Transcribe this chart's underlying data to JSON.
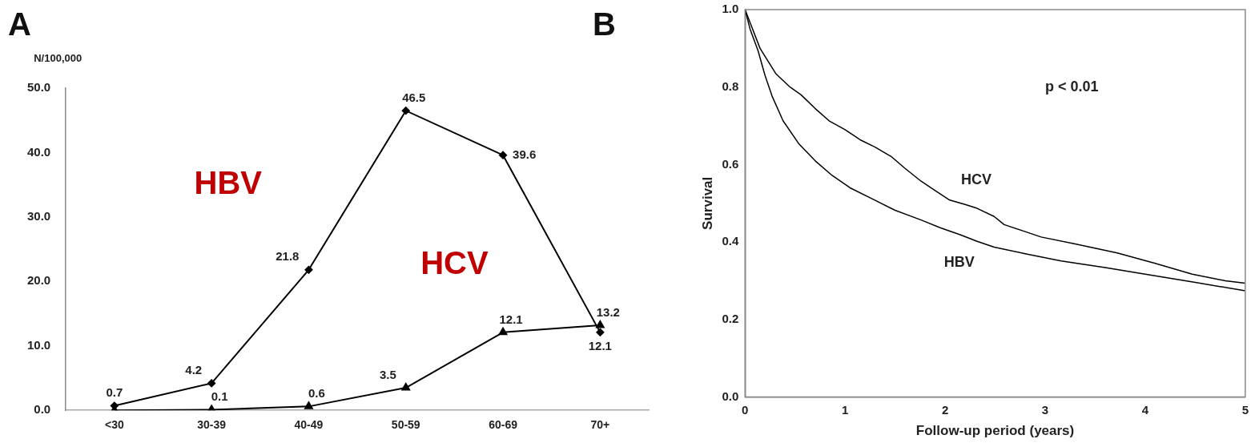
{
  "chart_data": [
    {
      "type": "line",
      "title": "A",
      "ylabel": "N/100,000",
      "categories": [
        "<30",
        "30-39",
        "40-49",
        "50-59",
        "60-69",
        "70+"
      ],
      "series": [
        {
          "name": "HBV",
          "color": "#000000",
          "marker": "diamond",
          "values": [
            0.7,
            4.2,
            21.8,
            46.5,
            39.6,
            12.1
          ],
          "value_labels": [
            "0.7",
            "4.2",
            "21.8",
            "46.5",
            "39.6",
            "12.1"
          ]
        },
        {
          "name": "HCV",
          "color": "#000000",
          "marker": "triangle",
          "values": [
            0.0,
            0.1,
            0.6,
            3.5,
            12.1,
            13.2
          ],
          "value_labels": [
            null,
            "0.1",
            "0.6",
            "3.5",
            "12.1",
            "13.2"
          ]
        }
      ],
      "ylim": [
        0,
        50
      ],
      "yticks": [
        {
          "value": 0,
          "label": "0.0"
        },
        {
          "value": 10,
          "label": "10.0"
        },
        {
          "value": 20,
          "label": "20.0"
        },
        {
          "value": 30,
          "label": "30.0"
        },
        {
          "value": 40,
          "label": "40.0"
        },
        {
          "value": 50,
          "label": "50.0"
        }
      ],
      "grid": false,
      "legend": false
    },
    {
      "type": "line",
      "title": "B",
      "xlabel": "Follow-up period (years)",
      "ylabel": "Survival",
      "annotations": [
        "p < 0.01"
      ],
      "series": [
        {
          "name": "HCV",
          "color": "#000000",
          "x": [
            0,
            0.06,
            0.15,
            0.31,
            0.45,
            0.56,
            0.7,
            0.84,
            1.0,
            1.15,
            1.3,
            1.46,
            1.6,
            1.76,
            1.9,
            2.04,
            2.2,
            2.32,
            2.49,
            2.59,
            2.8,
            2.96,
            3.3,
            3.72,
            4.1,
            4.47,
            4.8,
            5.0
          ],
          "values": [
            1.0,
            0.96,
            0.9,
            0.834,
            0.8,
            0.78,
            0.745,
            0.713,
            0.69,
            0.664,
            0.645,
            0.621,
            0.59,
            0.557,
            0.533,
            0.509,
            0.497,
            0.487,
            0.466,
            0.445,
            0.427,
            0.413,
            0.395,
            0.372,
            0.345,
            0.317,
            0.3,
            0.294
          ]
        },
        {
          "name": "HBV",
          "color": "#000000",
          "x": [
            0,
            0.05,
            0.13,
            0.2,
            0.27,
            0.38,
            0.54,
            0.7,
            0.87,
            1.05,
            1.29,
            1.5,
            1.76,
            1.95,
            2.15,
            2.32,
            2.49,
            2.8,
            3.16,
            3.6,
            4.0,
            4.5,
            5.0
          ],
          "values": [
            1.0,
            0.95,
            0.894,
            0.83,
            0.777,
            0.713,
            0.653,
            0.61,
            0.572,
            0.54,
            0.509,
            0.482,
            0.457,
            0.437,
            0.419,
            0.402,
            0.387,
            0.37,
            0.351,
            0.334,
            0.317,
            0.296,
            0.274
          ]
        }
      ],
      "xlim": [
        0,
        5
      ],
      "xticks": [
        0,
        1,
        2,
        3,
        4,
        5
      ],
      "ylim": [
        0,
        1
      ],
      "yticks": [
        {
          "value": 0,
          "label": "0.0"
        },
        {
          "value": 0.2,
          "label": "0.2"
        },
        {
          "value": 0.4,
          "label": "0.4"
        },
        {
          "value": 0.6,
          "label": "0.6"
        },
        {
          "value": 0.8,
          "label": "0.8"
        },
        {
          "value": 1,
          "label": "1.0"
        }
      ],
      "grid": false,
      "legend": false,
      "marker": "none"
    }
  ]
}
